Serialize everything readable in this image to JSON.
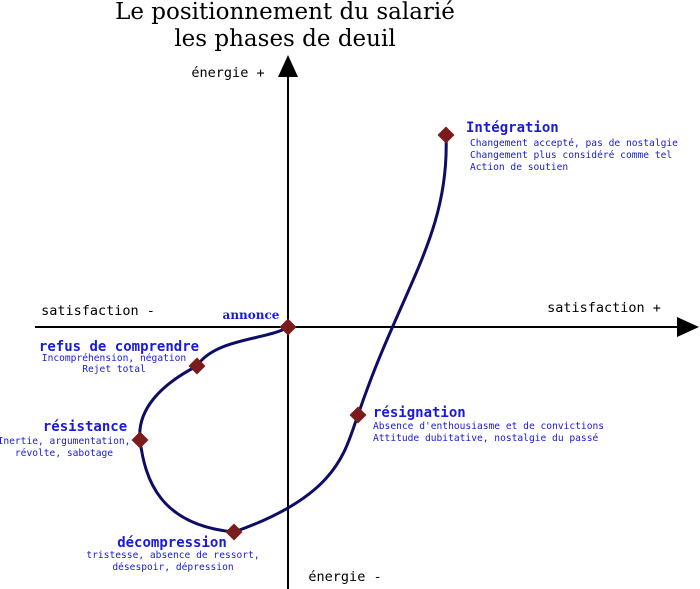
{
  "title": {
    "line1": "Le positionnement du salarié",
    "line2": "les phases de deuil"
  },
  "axes": {
    "energie_plus": "énergie +",
    "energie_minus": "énergie -",
    "satisfaction_minus": "satisfaction -",
    "satisfaction_plus": "satisfaction +"
  },
  "annonce": "annonce",
  "phases": {
    "refus": {
      "title": "refus de comprendre",
      "desc": [
        "Incompréhension, négation",
        "Rejet total"
      ]
    },
    "resistance": {
      "title": "résistance",
      "desc": [
        "Inertie, argumentation,",
        "révolte, sabotage"
      ]
    },
    "decompression": {
      "title": "décompression",
      "desc": [
        "tristesse, absence de ressort,",
        "désespoir, dépression"
      ]
    },
    "resignation": {
      "title": "résignation",
      "desc": [
        "Absence d'enthousiasme et de convictions",
        "Attitude dubitative, nostalgie du passé"
      ]
    },
    "integration": {
      "title": "Intégration",
      "desc": [
        "Changement accepté, pas de nostalgie",
        "Changement plus considéré comme tel",
        "Action de soutien"
      ]
    }
  },
  "colors": {
    "curve": "#0d0d66",
    "marker": "#7a1c1c",
    "label": "#1a1adb",
    "axis": "#000000"
  }
}
